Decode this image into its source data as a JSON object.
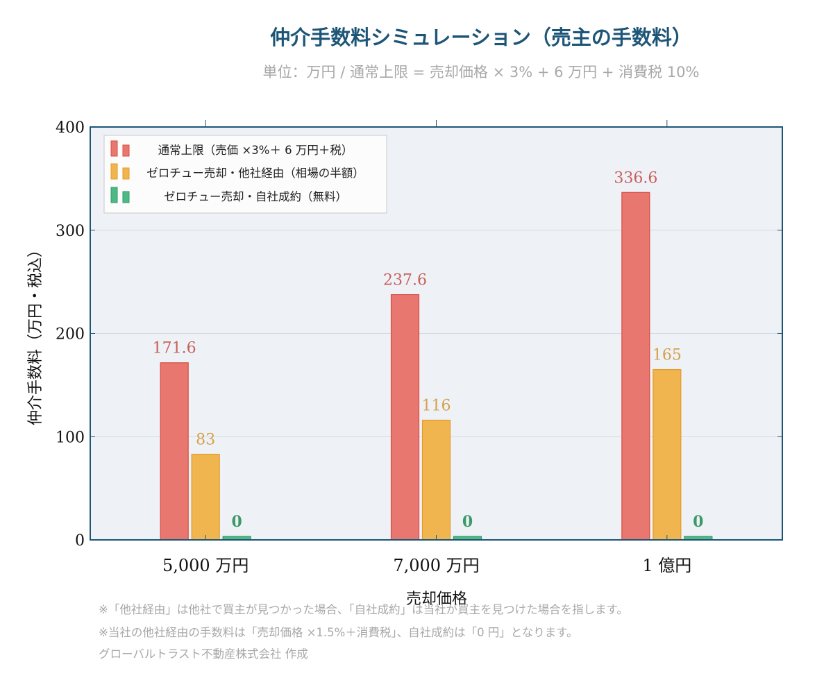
{
  "title": "仲介手数料シミュレーション（売主の手数料）",
  "subtitle": "単位：万円 / 通常上限 = 売却価格 × 3% + 6 万円 + 消費税 10%",
  "chart_data": {
    "type": "bar",
    "categories": [
      "5,000 万円",
      "7,000 万円",
      "1 億円"
    ],
    "series": [
      {
        "name": "通常上限（売価 ×3%＋ 6 万円＋税）",
        "values": [
          171.6,
          237.6,
          336.6
        ],
        "labels": [
          "171.6",
          "237.6",
          "336.6"
        ],
        "color": "#e8786f",
        "edge": "#d84c42",
        "label_color": "#c8605a"
      },
      {
        "name": "ゼロチュー売却・他社経由（相場の半額）",
        "values": [
          83,
          116,
          165
        ],
        "labels": [
          "83",
          "116",
          "165"
        ],
        "color": "#f0b54f",
        "edge": "#e39a28",
        "label_color": "#d4a04a"
      },
      {
        "name": "ゼロチュー売却・自社成約（無料）",
        "values": [
          0,
          0,
          0
        ],
        "labels": [
          "0",
          "0",
          "0"
        ],
        "color": "#4fb985",
        "edge": "#2e9a66",
        "label_color": "#3d9a68"
      }
    ],
    "xlabel": "売却価格",
    "ylabel": "仲介手数料（万円・税込）",
    "ylim": [
      0,
      400
    ],
    "yticks": [
      "0",
      "100",
      "200",
      "300",
      "400"
    ],
    "legend_position": "top-left",
    "grid": true,
    "plot_background": "#eef2f7",
    "frame_color": "#1d5577"
  },
  "notes": [
    "※「他社経由」は他社で買主が見つかった場合、「自社成約」は当社が買主を見つけた場合を指します。",
    "※当社の他社経由の手数料は「売却価格 ×1.5%＋消費税」、自社成約は「0 円」となります。",
    "グローバルトラスト不動産株式会社 作成"
  ]
}
